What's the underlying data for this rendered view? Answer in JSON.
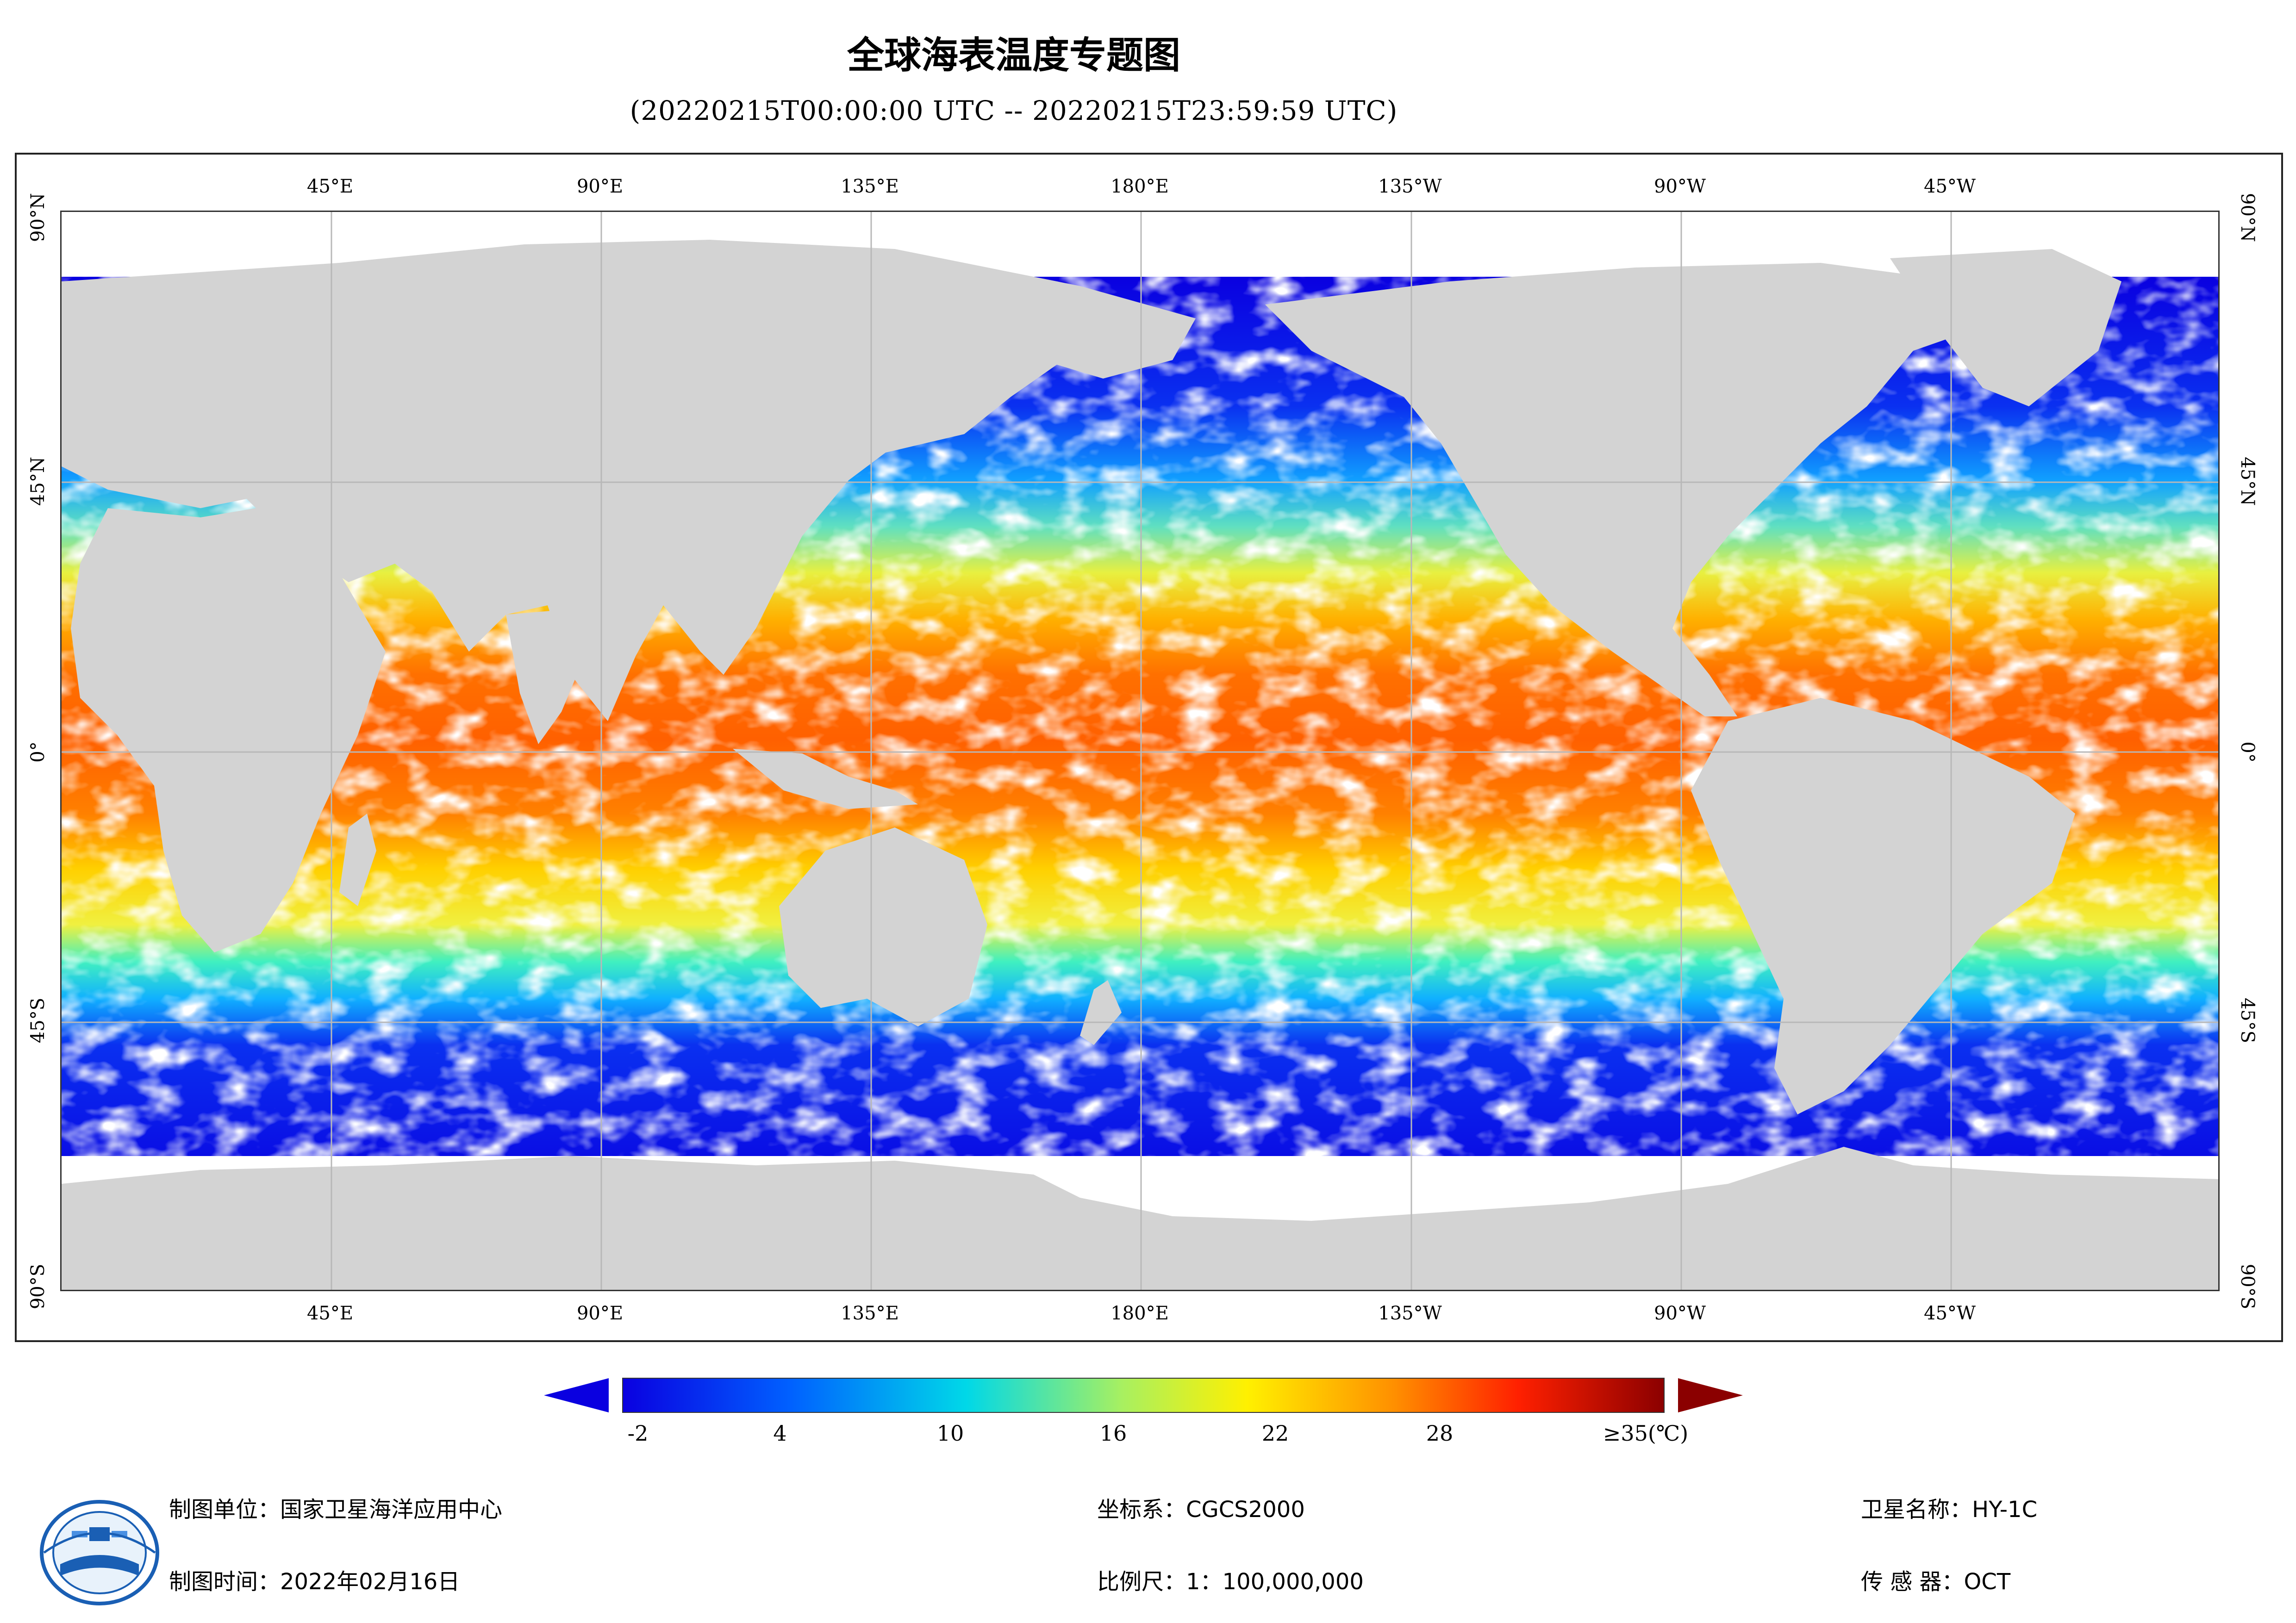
{
  "header": {
    "title": "全球海表温度专题图",
    "subtitle": "(20220215T00:00:00 UTC -- 20220215T23:59:59 UTC)"
  },
  "map": {
    "lon_labels": [
      "45°E",
      "90°E",
      "135°E",
      "180°E",
      "135°W",
      "90°W",
      "45°W"
    ],
    "lat_labels": [
      "90°N",
      "45°N",
      "0°",
      "45°S",
      "90°S"
    ],
    "colors": {
      "land": "#d3d3d3",
      "cloud_nodata": "#ffffff",
      "grid": "#b8b8b8"
    }
  },
  "legend": {
    "ticks": [
      "-2",
      "4",
      "10",
      "16",
      "22",
      "28",
      "≥35(℃)"
    ],
    "colors": [
      "#0a00e0",
      "#0060ff",
      "#00d8e8",
      "#a8f060",
      "#fff000",
      "#ff9000",
      "#ff2000",
      "#8b0000"
    ]
  },
  "footer": {
    "org": "制图单位：国家卫星海洋应用中心",
    "date": "制图时间：2022年02月16日",
    "crs": "坐标系：CGCS2000",
    "scale": "比例尺：1：100,000,000",
    "satellite": "卫星名称：HY-1C",
    "sensor": "传  感  器：OCT"
  }
}
